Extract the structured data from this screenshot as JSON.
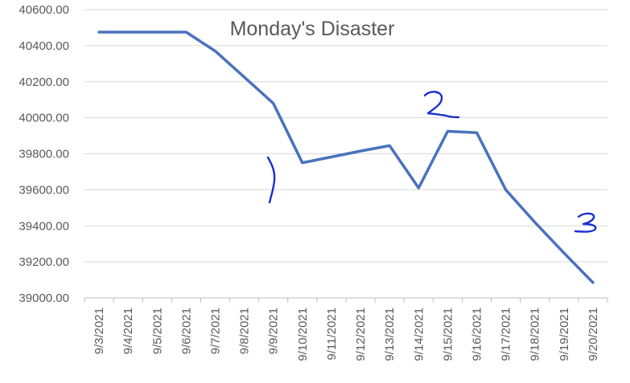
{
  "chart_data": {
    "type": "line",
    "title": "Monday's Disaster",
    "categories": [
      "9/3/2021",
      "9/4/2021",
      "9/5/2021",
      "9/6/2021",
      "9/7/2021",
      "9/8/2021",
      "9/9/2021",
      "9/10/2021",
      "9/11/2021",
      "9/12/2021",
      "9/13/2021",
      "9/14/2021",
      "9/15/2021",
      "9/16/2021",
      "9/17/2021",
      "9/18/2021",
      "9/19/2021",
      "9/20/2021"
    ],
    "series": [
      {
        "values": [
          40475,
          40475,
          40475,
          40475,
          40370,
          40225,
          40080,
          39750,
          39782,
          39815,
          39845,
          39610,
          39925,
          39917,
          39600,
          39420,
          39250,
          39085
        ]
      }
    ],
    "ylim": [
      39000,
      40600
    ],
    "yticks": [
      "39000.00",
      "39200.00",
      "39400.00",
      "39600.00",
      "39800.00",
      "40000.00",
      "40200.00",
      "40400.00",
      "40600.00"
    ],
    "grid": "horizontal",
    "annotations": [
      {
        "category": "9/9/2021",
        "mark": "1"
      },
      {
        "category": "9/15/2021",
        "mark": "2"
      },
      {
        "category": "9/20/2021",
        "mark": "3"
      }
    ],
    "colors": {
      "series": "#4a72bd",
      "handwriting": "#1a2fd0"
    }
  }
}
